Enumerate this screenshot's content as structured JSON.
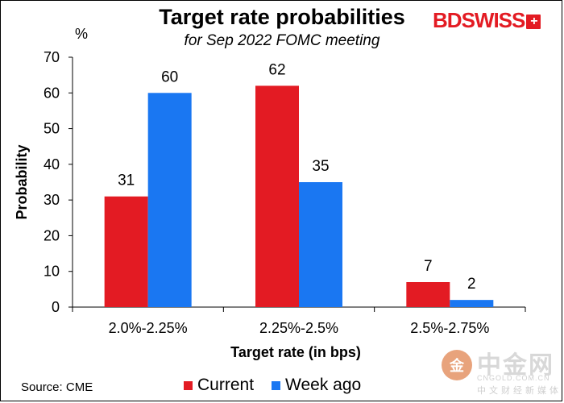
{
  "header": {
    "logo_text_bd": "BD",
    "logo_text_swiss": "SWISS",
    "logo_flag": "+"
  },
  "source": "Source: CME",
  "watermark": {
    "name": "中金网",
    "url": "CNGOLD.COM.CN",
    "tagline": "中文财经新媒体",
    "glyph": "金"
  },
  "colors": {
    "current": "#e31b23",
    "week_ago": "#1a77f2",
    "brand": "#e31b23"
  },
  "chart_data": {
    "type": "bar",
    "title": "Target rate probabilities",
    "subtitle": "for Sep 2022 FOMC meeting",
    "xlabel": "Target rate (in bps)",
    "ylabel": "Probability",
    "yunit": "%",
    "ylim": [
      0,
      70
    ],
    "yticks": [
      0,
      10,
      20,
      30,
      40,
      50,
      60,
      70
    ],
    "categories": [
      "2.0%-2.25%",
      "2.25%-2.5%",
      "2.5%-2.75%"
    ],
    "series": [
      {
        "name": "Current",
        "values": [
          31,
          62,
          7
        ],
        "labels": [
          "31",
          "62",
          "7"
        ]
      },
      {
        "name": "Week ago",
        "values": [
          60,
          35,
          2
        ],
        "labels": [
          "60",
          "35",
          "2"
        ]
      }
    ],
    "legend_position": "bottom-center",
    "grid": false
  }
}
